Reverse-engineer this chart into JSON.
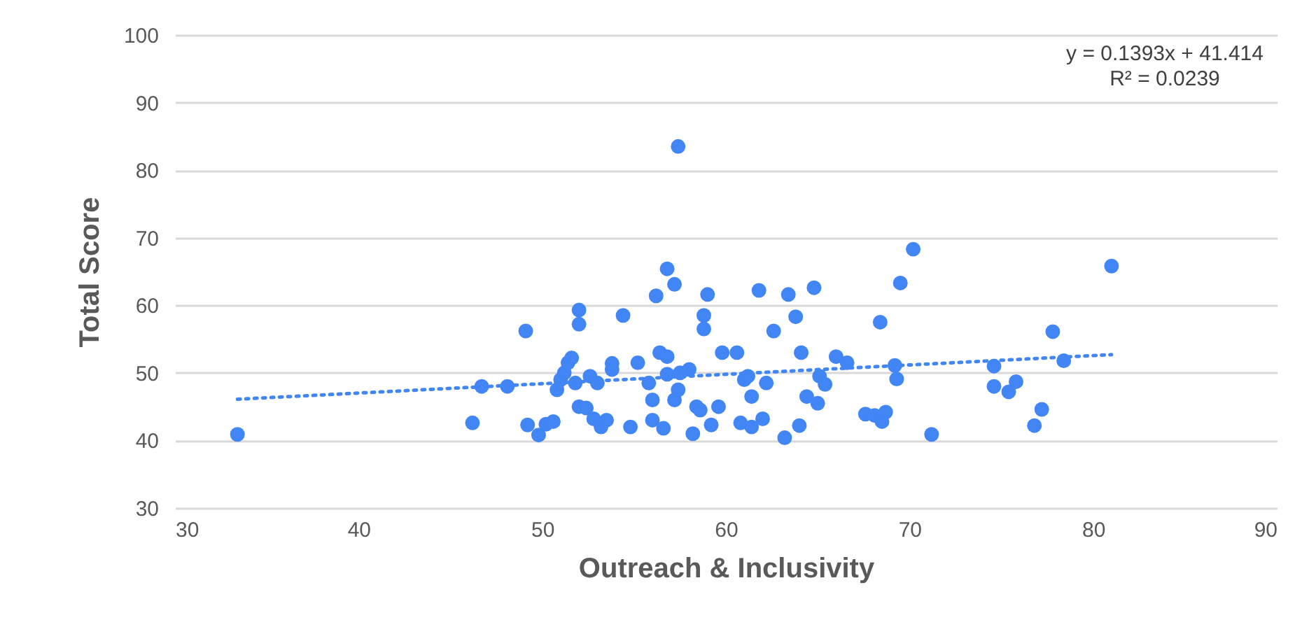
{
  "chart_data": {
    "type": "scatter",
    "xlabel": "Outreach & Inclusivity",
    "ylabel": "Total Score",
    "xlim": [
      30,
      90
    ],
    "xticks": [
      30,
      40,
      50,
      60,
      70,
      80,
      90
    ],
    "ylim": [
      30,
      100
    ],
    "yticks": [
      30,
      40,
      50,
      60,
      70,
      80,
      90,
      100
    ],
    "grid": "y",
    "marker": "circle",
    "annotations": [
      "y = 0.1393x + 41.414",
      "R² = 0.0239"
    ],
    "series": [
      {
        "color": "#4285f4",
        "x": [
          33.4,
          46.2,
          46.7,
          48.1,
          49.1,
          49.2,
          49.8,
          50.2,
          50.6,
          50.8,
          51,
          51.2,
          51.4,
          51.6,
          51.8,
          52,
          52,
          52,
          52.4,
          52.6,
          52.8,
          53,
          53.2,
          53.5,
          53.8,
          53.8,
          54.4,
          54.8,
          55.2,
          55.8,
          56,
          56,
          56.2,
          56.4,
          56.6,
          56.8,
          56.8,
          56.8,
          57.2,
          57.2,
          57.4,
          57.4,
          57.5,
          58,
          58.2,
          58.4,
          58.6,
          58.8,
          58.8,
          59,
          59.2,
          59.6,
          59.8,
          60.6,
          60.8,
          61,
          61.2,
          61.4,
          61.4,
          61.8,
          62,
          62.2,
          62.6,
          63.2,
          63.4,
          63.8,
          64,
          64.1,
          64.4,
          64.8,
          65,
          65.1,
          65.4,
          66,
          66.6,
          67.6,
          68.1,
          68.4,
          68.5,
          68.7,
          69.2,
          69.3,
          69.5,
          70.2,
          71.2,
          74.6,
          74.6,
          75.4,
          75.8,
          76.8,
          77.2,
          77.8,
          78.4,
          81
        ],
        "values": [
          40.9,
          42.6,
          48,
          48,
          56.2,
          42.3,
          40.8,
          42.4,
          42.8,
          47.5,
          49,
          50,
          51.5,
          52.2,
          48.5,
          57.2,
          59.3,
          45,
          44.8,
          49.5,
          43.2,
          48.5,
          42,
          43,
          50.5,
          51.4,
          58.5,
          42,
          51.5,
          48.5,
          43,
          46,
          61.4,
          53,
          41.8,
          49.8,
          52.4,
          65.4,
          63.1,
          46,
          47.5,
          83.5,
          50,
          50.5,
          41,
          45,
          44.5,
          56.5,
          58.5,
          61.6,
          42.3,
          45,
          53,
          53,
          42.6,
          49,
          49.5,
          42,
          46.5,
          62.2,
          43.2,
          48.5,
          56.2,
          40.4,
          61.6,
          58.3,
          42.2,
          53,
          46.5,
          62.6,
          45.5,
          49.5,
          48.3,
          52.4,
          51.5,
          43.9,
          43.7,
          57.5,
          42.8,
          44.2,
          51.1,
          49.1,
          63.3,
          68.3,
          40.9,
          48,
          51,
          47.2,
          48.7,
          42.2,
          44.6,
          56.1,
          51.8,
          65.8
        ]
      },
      {
        "type": "line",
        "color": "#4285f4",
        "line_style": "dotted",
        "marker": "none",
        "x": [
          33.4,
          81
        ],
        "values": [
          46.1,
          52.7
        ]
      }
    ]
  }
}
